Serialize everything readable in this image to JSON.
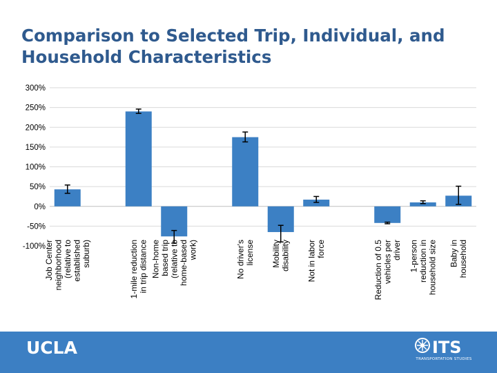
{
  "slide": {
    "title": "Comparison to Selected Trip, Individual, and Household Characteristics"
  },
  "footer": {
    "ucla_label": "UCLA",
    "its_label": "ITS",
    "its_caption": "TRANSPORTATION STUDIES"
  },
  "colors": {
    "bar": "#3c80c4",
    "footer": "#3c7fc3",
    "title": "#2f5a8e",
    "grid": "#d9d9d9"
  },
  "chart_data": {
    "type": "bar",
    "title": "",
    "xlabel": "",
    "ylabel": "",
    "ylim": [
      -100,
      300
    ],
    "yticks": [
      -100,
      -50,
      0,
      50,
      100,
      150,
      200,
      250,
      300
    ],
    "ytick_labels": [
      "-100%",
      "-50%",
      "0%",
      "50%",
      "100%",
      "150%",
      "200%",
      "250%",
      "300%"
    ],
    "grid": true,
    "bars": [
      {
        "label": "Job Center neighborhood (relative to established suburb)",
        "lines": [
          "Job Center",
          "neighborhood",
          "(relative to",
          "established",
          "suburb)"
        ],
        "value": 43,
        "err_low": 33,
        "err_high": 54
      },
      {
        "label": "1-mile reduction in trip distance",
        "lines": [
          "1-mile reduction",
          "in trip distance"
        ],
        "value": 240,
        "err_low": 235,
        "err_high": 246
      },
      {
        "label": "Non-home based trip (relative to home-based work)",
        "lines": [
          "Non-home",
          "based trip",
          "(relative to",
          "home-based",
          "work)"
        ],
        "value": -76,
        "err_low": -93,
        "err_high": -61
      },
      {
        "label": "No driver's license",
        "lines": [
          "No driver's",
          "license"
        ],
        "value": 175,
        "err_low": 163,
        "err_high": 188
      },
      {
        "label": "Mobility disability",
        "lines": [
          "Mobility",
          "disability"
        ],
        "value": -65,
        "err_low": -90,
        "err_high": -48
      },
      {
        "label": "Not in labor force",
        "lines": [
          "Not in labor",
          "force"
        ],
        "value": 17,
        "err_low": 10,
        "err_high": 25
      },
      {
        "label": "Reduction of 0.5 vehicles per driver",
        "lines": [
          "Reduction of 0.5",
          "vehicles per",
          "driver"
        ],
        "value": -42,
        "err_low": -44,
        "err_high": -40
      },
      {
        "label": "1-person reduction in household size",
        "lines": [
          "1-person",
          "reduction in",
          "household size"
        ],
        "value": 10,
        "err_low": 7,
        "err_high": 14
      },
      {
        "label": "Baby in household",
        "lines": [
          "Baby in",
          "household"
        ],
        "value": 27,
        "err_low": 5,
        "err_high": 51
      }
    ]
  }
}
